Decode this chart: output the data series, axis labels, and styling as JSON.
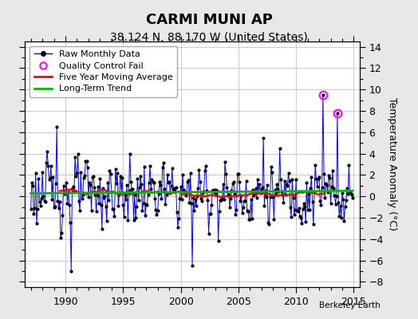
{
  "title": "CARMI MUNI AP",
  "subtitle": "38.124 N, 88.170 W (United States)",
  "ylabel": "Temperature Anomaly (°C)",
  "xlabel_bottom": "Berkeley Earth",
  "xlim": [
    1986.5,
    2015.5
  ],
  "ylim": [
    -8.5,
    14.5
  ],
  "yticks": [
    -8,
    -6,
    -4,
    -2,
    0,
    2,
    4,
    6,
    8,
    10,
    12,
    14
  ],
  "xticks": [
    1990,
    1995,
    2000,
    2005,
    2010,
    2015
  ],
  "background_color": "#e8e8e8",
  "plot_bg_color": "#ffffff",
  "legend_labels": [
    "Raw Monthly Data",
    "Quality Control Fail",
    "Five Year Moving Average",
    "Long-Term Trend"
  ],
  "line_color": "#0000ff",
  "marker_color": "#000000",
  "qc_fail_color": "#ff00ff",
  "moving_avg_color": "#ff0000",
  "trend_color": "#00bb00",
  "title_fontsize": 13,
  "subtitle_fontsize": 10,
  "tick_labelsize": 9,
  "ylabel_fontsize": 9
}
